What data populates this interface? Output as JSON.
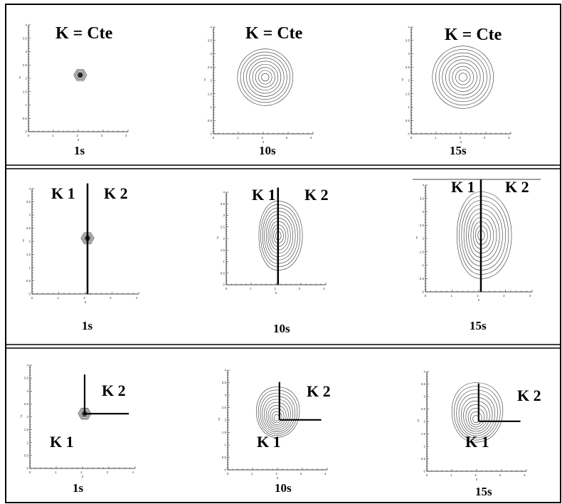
{
  "figure": {
    "axis": {
      "x_ticks": [
        "0",
        "1",
        "2",
        "3",
        "4"
      ],
      "y_ticks": [
        "0",
        "0.5",
        "1",
        "1.5",
        "2",
        "2.5",
        "3",
        "3.5",
        "4"
      ],
      "x_label": "x",
      "y_label": "y"
    },
    "rows": [
      {
        "name": "constant",
        "cells": [
          {
            "label_const": "K = Cte",
            "time": "1s",
            "shape": "dot"
          },
          {
            "label_const": "K = Cte",
            "time": "10s",
            "shape": "circle"
          },
          {
            "label_const": "K = Cte",
            "time": "15s",
            "shape": "circle-large"
          }
        ]
      },
      {
        "name": "vertical-interface",
        "cells": [
          {
            "label_left": "K 1",
            "label_right": "K 2",
            "time": "1s",
            "shape": "dot"
          },
          {
            "label_left": "K 1",
            "label_right": "K 2",
            "time": "10s",
            "shape": "lens"
          },
          {
            "label_left": "K 1",
            "label_right": "K 2",
            "time": "15s",
            "shape": "lens-large"
          }
        ]
      },
      {
        "name": "corner-interface",
        "cells": [
          {
            "label_k1": "K 1",
            "label_k2": "K 2",
            "time": "1s",
            "shape": "dot"
          },
          {
            "label_k1": "K 1",
            "label_k2": "K 2",
            "time": "10s",
            "shape": "corner"
          },
          {
            "label_k1": "K 1",
            "label_k2": "K 2",
            "time": "15s",
            "shape": "corner-large"
          }
        ]
      }
    ]
  }
}
